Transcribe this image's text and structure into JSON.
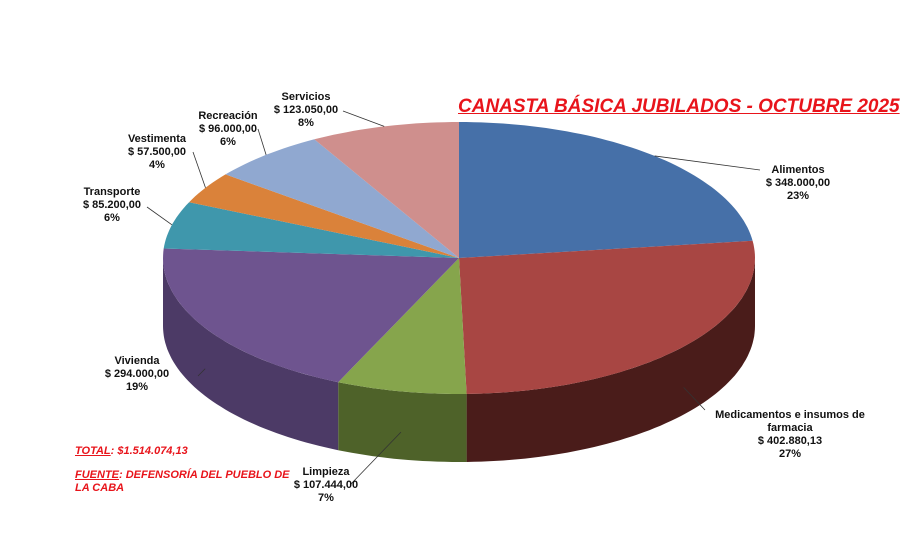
{
  "chart_data": {
    "type": "pie",
    "style": "3d",
    "title": "CANASTA BÁSICA JUBILADOS - OCTUBRE 2025",
    "slices": [
      {
        "label": "Alimentos",
        "value": 348000.0,
        "value_text": "$ 348.000,00",
        "percent": "23%",
        "color": "#4670a8",
        "side": "#2f4e78"
      },
      {
        "label": "Medicamentos e insumos de farmacia",
        "value": 402880.13,
        "value_text": "$ 402.880,13",
        "percent": "27%",
        "color": "#a84643",
        "side": "#4a1c1a"
      },
      {
        "label": "Limpieza",
        "value": 107444.0,
        "value_text": "$ 107.444,00",
        "percent": "7%",
        "color": "#86a54c",
        "side": "#4e6229"
      },
      {
        "label": "Vivienda",
        "value": 294000.0,
        "value_text": "$ 294.000,00",
        "percent": "19%",
        "color": "#6e548f",
        "side": "#4c3a66"
      },
      {
        "label": "Transporte",
        "value": 85200.0,
        "value_text": "$ 85.200,00",
        "percent": "6%",
        "color": "#3f97ac",
        "side": "#2a6777"
      },
      {
        "label": "Vestimenta",
        "value": 57500.0,
        "value_text": "$ 57.500,00",
        "percent": "4%",
        "color": "#da823a",
        "side": "#9a5a26"
      },
      {
        "label": "Recreación",
        "value": 96000.0,
        "value_text": "$ 96.000,00",
        "percent": "6%",
        "color": "#90a8d0",
        "side": "#627596"
      },
      {
        "label": "Servicios",
        "value": 123050.0,
        "value_text": "$ 123.050,00",
        "percent": "8%",
        "color": "#cf8f8d",
        "side": "#95605e"
      }
    ]
  },
  "notes": {
    "total_label": "TOTAL",
    "total_value": ":  $1.514.074,13",
    "source_label": "FUENTE",
    "source_value": ": DEFENSORÍA DEL PUEBLO DE LA CABA"
  }
}
